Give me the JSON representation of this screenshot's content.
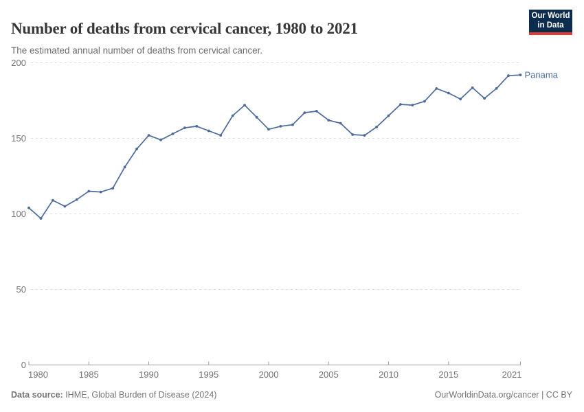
{
  "header": {
    "title": "Number of deaths from cervical cancer, 1980 to 2021",
    "subtitle": "The estimated annual number of deaths from cervical cancer."
  },
  "logo": {
    "line1": "Our World",
    "line2": "in Data",
    "bg_color": "#0d2d4e",
    "accent_color": "#e23b34"
  },
  "chart_data": {
    "type": "line",
    "title": "Number of deaths from cervical cancer, 1980 to 2021",
    "x": [
      1980,
      1981,
      1982,
      1983,
      1984,
      1985,
      1986,
      1987,
      1988,
      1989,
      1990,
      1991,
      1992,
      1993,
      1994,
      1995,
      1996,
      1997,
      1998,
      1999,
      2000,
      2001,
      2002,
      2003,
      2004,
      2005,
      2006,
      2007,
      2008,
      2009,
      2010,
      2011,
      2012,
      2013,
      2014,
      2015,
      2016,
      2017,
      2018,
      2019,
      2020,
      2021
    ],
    "series": [
      {
        "name": "Panama",
        "color": "#4C6A9C",
        "values": [
          104,
          97,
          109,
          105,
          109.5,
          115,
          114.5,
          117,
          131,
          143,
          152,
          149,
          153,
          157,
          158,
          155,
          152,
          165,
          172,
          164,
          156,
          158,
          159,
          167,
          168,
          162,
          160,
          152.5,
          152,
          157.5,
          165,
          172.5,
          172,
          174.5,
          183,
          180,
          176,
          183.5,
          176.5,
          183,
          191.5,
          192
        ]
      }
    ],
    "xlabel": "",
    "ylabel": "",
    "xlim": [
      1980,
      2021
    ],
    "ylim": [
      0,
      200
    ],
    "y_ticks": [
      0,
      50,
      100,
      150,
      200
    ],
    "x_tick_labels": [
      "1980",
      "1985",
      "1990",
      "1995",
      "2000",
      "2005",
      "2010",
      "2015",
      "2021"
    ],
    "grid": "horizontal-dashed",
    "legend_position": "end-of-line-label"
  },
  "footer": {
    "source_label": "Data source:",
    "source_text": " IHME, Global Burden of Disease (2024)",
    "rights_url": "OurWorldinData.org/cancer",
    "rights_sep": " | ",
    "rights_license": "CC BY"
  },
  "colors": {
    "line": "#4C6A9C",
    "grid": "#dcdcdc",
    "axis": "#9e9e9e",
    "tick_text": "#737373",
    "entity_label": "#4C6A9C"
  }
}
